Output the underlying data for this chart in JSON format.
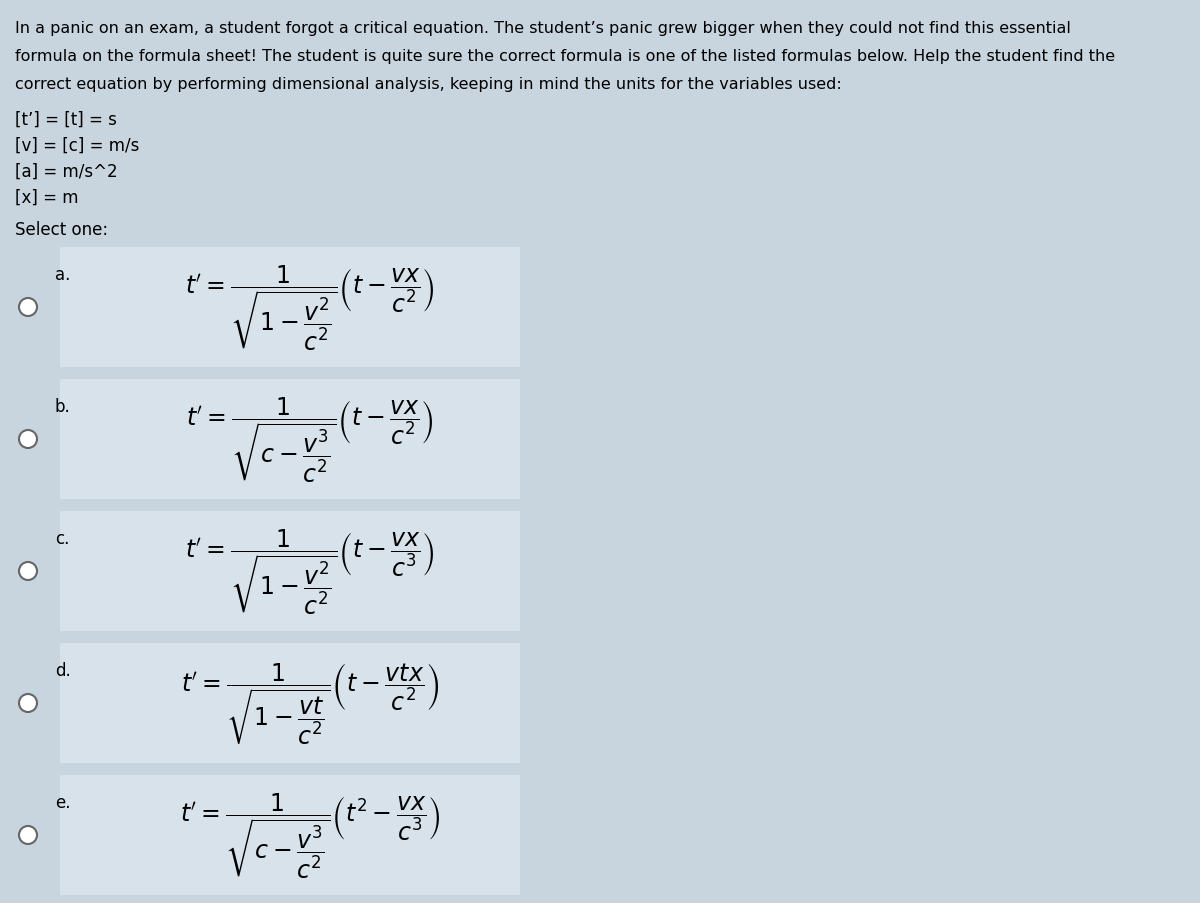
{
  "bg_color": "#c8d4de",
  "box_color": "#d4dde5",
  "text_color": "#000000",
  "title_lines": [
    "In a panic on an exam, a student forgot a critical equation. The student’s panic grew bigger when they could not find this essential",
    "formula on the formula sheet! The student is quite sure the correct formula is one of the listed formulas below. Help the student find the",
    "correct equation by performing dimensional analysis, keeping in mind the units for the variables used:"
  ],
  "units": [
    "[t’] = [t] = s",
    "[v] = [c] = m/s",
    "[a] = m/s^2",
    "[x] = m"
  ],
  "select_text": "Select one:",
  "options": [
    "a.",
    "b.",
    "c.",
    "d.",
    "e."
  ],
  "formulas": [
    "t' = \\dfrac{1}{\\sqrt{1 - \\dfrac{v^2}{c^2}}}\\left(t - \\dfrac{vx}{c^2}\\right)",
    "t' = \\dfrac{1}{\\sqrt{c - \\dfrac{v^3}{c^2}}}\\left(t - \\dfrac{vx}{c^2}\\right)",
    "t' = \\dfrac{1}{\\sqrt{1 - \\dfrac{v^2}{c^2}}}\\left(t - \\dfrac{vx}{c^3}\\right)",
    "t' = \\dfrac{1}{\\sqrt{1 - \\dfrac{vt}{c^2}}}\\left(t - \\dfrac{vtx}{c^2}\\right)",
    "t' = \\dfrac{1}{\\sqrt{c - \\dfrac{v^3}{c^2}}}\\left(t^2 - \\dfrac{vx}{c^3}\\right)"
  ],
  "figsize": [
    12.0,
    9.04
  ],
  "dpi": 100,
  "title_fontsize": 11.5,
  "unit_fontsize": 12,
  "select_fontsize": 12,
  "option_label_fontsize": 12,
  "formula_fontsize": 17
}
